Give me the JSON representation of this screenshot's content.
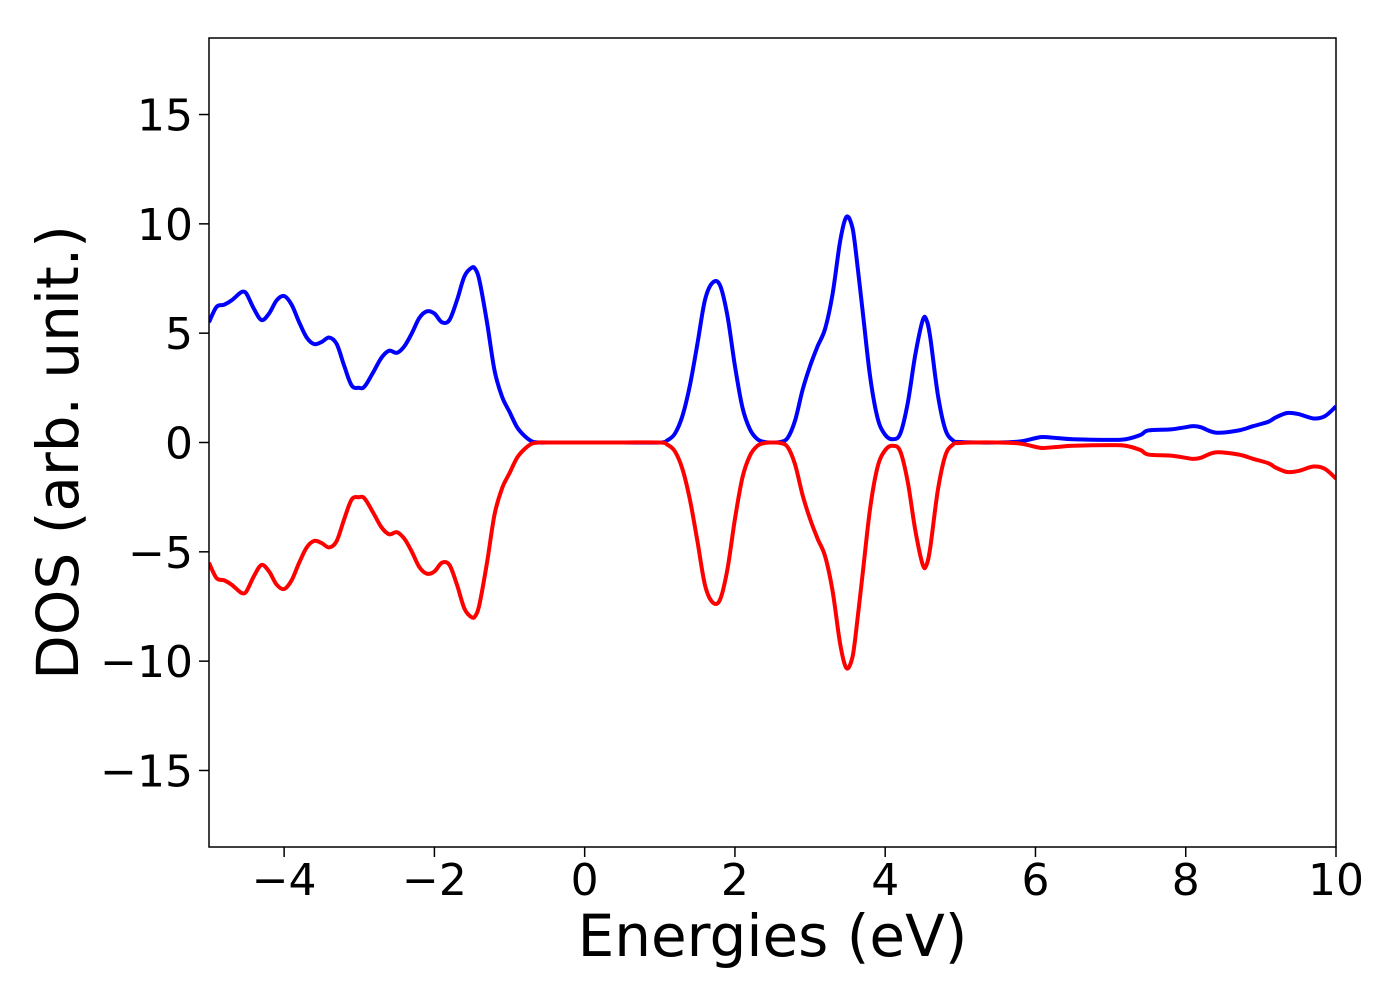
{
  "chart_data": {
    "type": "line",
    "xlabel": "Energies (eV)",
    "ylabel": "DOS (arb. unit.)",
    "xlim": [
      -5,
      10
    ],
    "ylim": [
      -18.5,
      18.5
    ],
    "xticks": [
      -4,
      -2,
      0,
      2,
      4,
      6,
      8,
      10
    ],
    "yticks": [
      -15,
      -10,
      -5,
      0,
      5,
      10,
      15
    ],
    "xtick_labels": [
      "−4",
      "−2",
      "0",
      "2",
      "4",
      "6",
      "8",
      "10"
    ],
    "ytick_labels": [
      "−15",
      "−10",
      "−5",
      "0",
      "5",
      "10",
      "15"
    ],
    "grid": false,
    "series": [
      {
        "color": "#0000ff",
        "x": [
          -5.0,
          -4.9,
          -4.8,
          -4.7,
          -4.6,
          -4.55,
          -4.5,
          -4.4,
          -4.3,
          -4.2,
          -4.1,
          -4.0,
          -3.9,
          -3.8,
          -3.7,
          -3.6,
          -3.5,
          -3.4,
          -3.3,
          -3.2,
          -3.1,
          -3.0,
          -2.95,
          -2.9,
          -2.8,
          -2.7,
          -2.6,
          -2.5,
          -2.4,
          -2.3,
          -2.2,
          -2.1,
          -2.0,
          -1.9,
          -1.8,
          -1.7,
          -1.6,
          -1.5,
          -1.45,
          -1.4,
          -1.3,
          -1.2,
          -1.1,
          -1.0,
          -0.9,
          -0.8,
          -0.7,
          -0.6,
          -0.5,
          0.0,
          0.5,
          1.0,
          1.1,
          1.2,
          1.3,
          1.4,
          1.5,
          1.6,
          1.7,
          1.8,
          1.9,
          2.0,
          2.1,
          2.2,
          2.3,
          2.4,
          2.5,
          2.6,
          2.7,
          2.8,
          2.9,
          3.0,
          3.1,
          3.2,
          3.3,
          3.4,
          3.48,
          3.55,
          3.6,
          3.7,
          3.8,
          3.9,
          4.0,
          4.1,
          4.2,
          4.3,
          4.4,
          4.5,
          4.55,
          4.6,
          4.7,
          4.8,
          4.9,
          5.0,
          5.5,
          5.8,
          6.0,
          6.1,
          6.3,
          6.5,
          7.0,
          7.2,
          7.4,
          7.5,
          7.8,
          8.0,
          8.1,
          8.2,
          8.4,
          8.7,
          8.9,
          9.1,
          9.2,
          9.35,
          9.5,
          9.7,
          9.85,
          10.0
        ],
        "y": [
          5.5,
          6.2,
          6.3,
          6.5,
          6.8,
          6.9,
          6.8,
          6.1,
          5.6,
          5.9,
          6.5,
          6.7,
          6.3,
          5.5,
          4.8,
          4.5,
          4.6,
          4.8,
          4.5,
          3.5,
          2.6,
          2.5,
          2.5,
          2.7,
          3.3,
          3.9,
          4.2,
          4.1,
          4.4,
          5.0,
          5.7,
          6.0,
          5.9,
          5.5,
          5.6,
          6.5,
          7.6,
          8.0,
          7.9,
          7.4,
          5.5,
          3.3,
          2.1,
          1.4,
          0.7,
          0.3,
          0.05,
          0.0,
          0.0,
          0.0,
          0.0,
          0.0,
          0.1,
          0.4,
          1.2,
          2.6,
          4.5,
          6.5,
          7.3,
          7.2,
          5.8,
          3.5,
          1.6,
          0.6,
          0.15,
          0.02,
          0.0,
          0.02,
          0.2,
          1.0,
          2.4,
          3.5,
          4.4,
          5.2,
          6.8,
          9.2,
          10.3,
          10.0,
          9.0,
          6.0,
          3.0,
          1.1,
          0.35,
          0.15,
          0.4,
          1.8,
          4.0,
          5.6,
          5.6,
          4.8,
          2.2,
          0.6,
          0.1,
          0.02,
          0.0,
          0.05,
          0.2,
          0.25,
          0.2,
          0.15,
          0.12,
          0.15,
          0.35,
          0.55,
          0.6,
          0.7,
          0.75,
          0.7,
          0.45,
          0.55,
          0.75,
          0.95,
          1.15,
          1.35,
          1.3,
          1.1,
          1.2,
          1.65
        ]
      },
      {
        "color": "#ff0000",
        "x": [
          -5.0,
          -4.9,
          -4.8,
          -4.7,
          -4.6,
          -4.55,
          -4.5,
          -4.4,
          -4.3,
          -4.2,
          -4.1,
          -4.0,
          -3.9,
          -3.8,
          -3.7,
          -3.6,
          -3.5,
          -3.4,
          -3.3,
          -3.2,
          -3.1,
          -3.0,
          -2.95,
          -2.9,
          -2.8,
          -2.7,
          -2.6,
          -2.5,
          -2.4,
          -2.3,
          -2.2,
          -2.1,
          -2.0,
          -1.9,
          -1.8,
          -1.7,
          -1.6,
          -1.5,
          -1.45,
          -1.4,
          -1.3,
          -1.2,
          -1.1,
          -1.0,
          -0.9,
          -0.8,
          -0.7,
          -0.6,
          -0.5,
          0.0,
          0.5,
          1.0,
          1.1,
          1.2,
          1.3,
          1.4,
          1.5,
          1.6,
          1.7,
          1.8,
          1.9,
          2.0,
          2.1,
          2.2,
          2.3,
          2.4,
          2.5,
          2.6,
          2.7,
          2.8,
          2.9,
          3.0,
          3.1,
          3.2,
          3.3,
          3.4,
          3.48,
          3.55,
          3.6,
          3.7,
          3.8,
          3.9,
          4.0,
          4.1,
          4.2,
          4.3,
          4.4,
          4.5,
          4.55,
          4.6,
          4.7,
          4.8,
          4.9,
          5.0,
          5.5,
          5.8,
          6.0,
          6.1,
          6.3,
          6.5,
          7.0,
          7.2,
          7.4,
          7.5,
          7.8,
          8.0,
          8.1,
          8.2,
          8.4,
          8.7,
          8.9,
          9.1,
          9.2,
          9.35,
          9.5,
          9.7,
          9.85,
          10.0
        ],
        "y": [
          -5.5,
          -6.2,
          -6.3,
          -6.5,
          -6.8,
          -6.9,
          -6.8,
          -6.1,
          -5.6,
          -5.9,
          -6.5,
          -6.7,
          -6.3,
          -5.5,
          -4.8,
          -4.5,
          -4.6,
          -4.8,
          -4.5,
          -3.5,
          -2.6,
          -2.5,
          -2.5,
          -2.7,
          -3.3,
          -3.9,
          -4.2,
          -4.1,
          -4.4,
          -5.0,
          -5.7,
          -6.0,
          -5.9,
          -5.5,
          -5.6,
          -6.5,
          -7.6,
          -8.0,
          -7.9,
          -7.4,
          -5.5,
          -3.3,
          -2.1,
          -1.4,
          -0.7,
          -0.3,
          -0.05,
          0.0,
          0.0,
          0.0,
          0.0,
          0.0,
          -0.1,
          -0.4,
          -1.2,
          -2.6,
          -4.5,
          -6.5,
          -7.3,
          -7.2,
          -5.8,
          -3.5,
          -1.6,
          -0.6,
          -0.15,
          -0.02,
          0.0,
          -0.02,
          -0.2,
          -1.0,
          -2.4,
          -3.5,
          -4.4,
          -5.2,
          -6.8,
          -9.2,
          -10.3,
          -10.0,
          -9.0,
          -6.0,
          -3.0,
          -1.1,
          -0.35,
          -0.15,
          -0.4,
          -1.8,
          -4.0,
          -5.6,
          -5.6,
          -4.8,
          -2.2,
          -0.6,
          -0.1,
          -0.02,
          0.0,
          -0.05,
          -0.2,
          -0.25,
          -0.2,
          -0.15,
          -0.12,
          -0.15,
          -0.35,
          -0.55,
          -0.6,
          -0.7,
          -0.75,
          -0.7,
          -0.45,
          -0.55,
          -0.75,
          -0.95,
          -1.15,
          -1.35,
          -1.3,
          -1.1,
          -1.2,
          -1.65
        ]
      }
    ]
  }
}
